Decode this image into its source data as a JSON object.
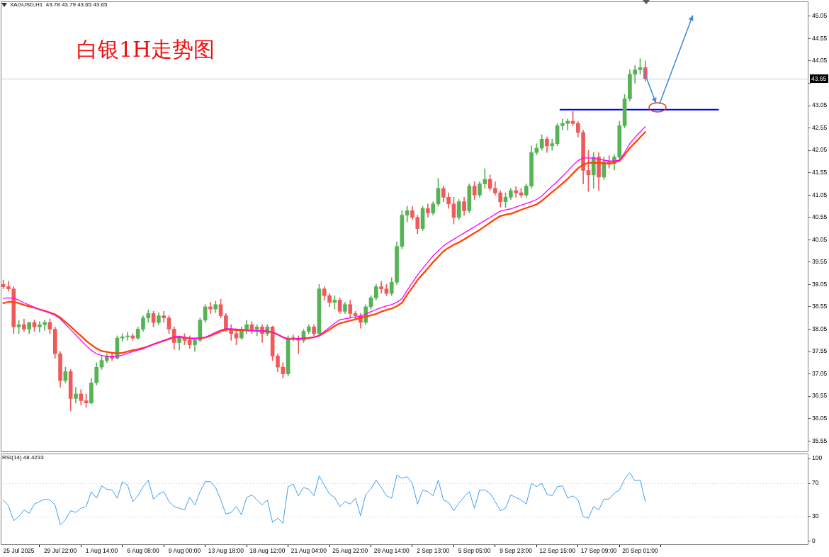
{
  "chart_data": [
    {
      "type": "candlestick",
      "title": "白银1H走势图",
      "annotations": [
        "XAGUSD,H1  43.78 43.79 43.65 43.65"
      ],
      "categories": [
        null,
        null,
        null,
        null,
        null,
        null,
        null,
        null,
        null,
        null,
        null,
        null,
        null,
        null,
        null,
        null,
        null,
        null,
        null,
        null,
        null,
        null,
        null,
        null,
        null,
        null,
        null,
        null,
        null,
        null,
        null,
        null,
        null,
        null,
        null,
        null,
        null,
        null,
        null,
        null,
        null,
        null,
        null,
        null,
        null,
        null,
        null,
        null,
        null,
        null,
        null,
        null,
        null,
        null,
        null,
        null,
        null,
        null,
        null,
        null,
        null,
        null,
        null,
        null,
        null,
        null,
        null,
        null,
        null,
        null,
        null,
        null,
        null,
        null,
        null,
        null,
        null,
        null,
        null,
        null,
        null,
        null,
        null,
        null,
        null,
        null,
        null,
        null,
        null,
        null,
        null,
        null,
        null,
        null,
        null,
        null,
        null,
        null,
        null,
        null,
        null,
        null,
        null,
        null,
        null,
        null,
        null,
        null,
        null,
        null,
        null,
        null,
        null,
        null,
        null,
        null,
        null,
        null,
        null,
        null,
        null,
        null,
        null,
        null,
        null,
        null,
        null,
        null,
        null,
        null,
        null,
        null,
        null,
        null,
        null,
        null,
        null,
        null,
        null,
        null,
        null,
        null,
        null,
        null,
        null,
        null,
        null,
        null,
        null,
        null,
        null,
        null,
        null,
        null,
        null,
        null
      ],
      "series": [
        {
          "type": "candlestick",
          "ohlc": [
            [
              39.05,
              39.15,
              38.95,
              39.0
            ],
            [
              39.0,
              39.12,
              38.9,
              38.95
            ],
            [
              38.95,
              39.0,
              37.95,
              38.1
            ],
            [
              38.1,
              38.25,
              37.95,
              38.15
            ],
            [
              38.15,
              38.28,
              38.0,
              38.05
            ],
            [
              38.05,
              38.2,
              37.95,
              38.2
            ],
            [
              38.2,
              38.26,
              38.0,
              38.1
            ],
            [
              38.1,
              38.22,
              37.98,
              38.15
            ],
            [
              38.15,
              38.25,
              38.02,
              38.2
            ],
            [
              38.2,
              38.28,
              37.95,
              38.05
            ],
            [
              38.05,
              38.1,
              37.4,
              37.5
            ],
            [
              37.5,
              37.55,
              36.75,
              36.9
            ],
            [
              36.9,
              37.2,
              36.85,
              37.1
            ],
            [
              37.1,
              37.15,
              36.22,
              36.5
            ],
            [
              36.5,
              36.75,
              36.4,
              36.6
            ],
            [
              36.6,
              36.7,
              36.35,
              36.45
            ],
            [
              36.45,
              36.6,
              36.3,
              36.4
            ],
            [
              36.4,
              36.95,
              36.38,
              36.85
            ],
            [
              36.85,
              37.3,
              36.8,
              37.2
            ],
            [
              37.2,
              37.45,
              37.15,
              37.35
            ],
            [
              37.35,
              37.5,
              37.3,
              37.45
            ],
            [
              37.45,
              37.52,
              37.35,
              37.4
            ],
            [
              37.4,
              37.9,
              37.38,
              37.85
            ],
            [
              37.85,
              37.95,
              37.78,
              37.88
            ],
            [
              37.88,
              37.98,
              37.8,
              37.9
            ],
            [
              37.9,
              37.95,
              37.8,
              37.85
            ],
            [
              37.85,
              38.1,
              37.82,
              38.05
            ],
            [
              38.05,
              38.35,
              38.0,
              38.3
            ],
            [
              38.3,
              38.48,
              38.2,
              38.4
            ],
            [
              38.4,
              38.45,
              38.1,
              38.2
            ],
            [
              38.2,
              38.42,
              38.15,
              38.35
            ],
            [
              38.35,
              38.45,
              38.2,
              38.3
            ],
            [
              38.3,
              38.35,
              37.95,
              38.05
            ],
            [
              38.05,
              38.1,
              37.6,
              37.75
            ],
            [
              37.75,
              37.9,
              37.58,
              37.85
            ],
            [
              37.85,
              37.95,
              37.7,
              37.8
            ],
            [
              37.8,
              37.9,
              37.62,
              37.7
            ],
            [
              37.7,
              37.85,
              37.55,
              37.8
            ],
            [
              37.8,
              38.3,
              37.78,
              38.25
            ],
            [
              38.25,
              38.6,
              38.2,
              38.55
            ],
            [
              38.55,
              38.65,
              38.4,
              38.5
            ],
            [
              38.5,
              38.68,
              38.42,
              38.6
            ],
            [
              38.6,
              38.72,
              38.3,
              38.35
            ],
            [
              38.35,
              38.4,
              38.0,
              38.05
            ],
            [
              38.05,
              38.15,
              37.8,
              37.95
            ],
            [
              37.95,
              38.05,
              37.7,
              37.85
            ],
            [
              37.85,
              38.1,
              37.82,
              38.05
            ],
            [
              38.05,
              38.25,
              37.95,
              38.15
            ],
            [
              38.15,
              38.22,
              37.95,
              38.05
            ],
            [
              38.05,
              38.15,
              37.9,
              38.1
            ],
            [
              38.1,
              38.15,
              37.75,
              37.95
            ],
            [
              37.95,
              38.15,
              37.9,
              38.1
            ],
            [
              38.1,
              38.12,
              37.35,
              37.45
            ],
            [
              37.45,
              37.5,
              37.1,
              37.2
            ],
            [
              37.2,
              37.3,
              36.96,
              37.05
            ],
            [
              37.05,
              37.9,
              37.0,
              37.85
            ],
            [
              37.85,
              37.92,
              37.78,
              37.85
            ],
            [
              37.85,
              37.9,
              37.5,
              37.8
            ],
            [
              37.8,
              38.05,
              37.75,
              38.0
            ],
            [
              38.0,
              38.15,
              37.95,
              38.1
            ],
            [
              38.1,
              38.15,
              37.9,
              37.95
            ],
            [
              37.95,
              39.05,
              37.9,
              38.95
            ],
            [
              38.95,
              39.0,
              38.7,
              38.8
            ],
            [
              38.8,
              38.85,
              38.55,
              38.65
            ],
            [
              38.65,
              38.8,
              38.5,
              38.7
            ],
            [
              38.7,
              38.75,
              38.4,
              38.45
            ],
            [
              38.45,
              38.65,
              38.4,
              38.6
            ],
            [
              38.6,
              38.7,
              38.3,
              38.4
            ],
            [
              38.4,
              38.45,
              38.25,
              38.35
            ],
            [
              38.35,
              38.4,
              38.07,
              38.2
            ],
            [
              38.2,
              38.6,
              38.15,
              38.55
            ],
            [
              38.55,
              38.8,
              38.5,
              38.75
            ],
            [
              38.75,
              39.05,
              38.7,
              39.0
            ],
            [
              39.0,
              39.12,
              38.85,
              38.95
            ],
            [
              38.95,
              39.05,
              38.8,
              38.85
            ],
            [
              38.85,
              39.2,
              38.8,
              39.1
            ],
            [
              39.1,
              40.0,
              39.05,
              39.9
            ],
            [
              39.9,
              40.7,
              39.85,
              40.6
            ],
            [
              40.6,
              40.8,
              40.45,
              40.7
            ],
            [
              40.7,
              40.8,
              40.5,
              40.55
            ],
            [
              40.55,
              40.6,
              40.18,
              40.3
            ],
            [
              40.3,
              40.8,
              40.25,
              40.75
            ],
            [
              40.75,
              40.85,
              40.55,
              40.65
            ],
            [
              40.65,
              40.9,
              40.6,
              40.85
            ],
            [
              40.85,
              41.42,
              40.8,
              41.2
            ],
            [
              41.2,
              41.25,
              40.9,
              41.0
            ],
            [
              41.0,
              41.1,
              40.75,
              40.85
            ],
            [
              40.85,
              41.0,
              40.4,
              40.55
            ],
            [
              40.55,
              40.95,
              40.5,
              40.9
            ],
            [
              40.9,
              41.0,
              40.6,
              40.7
            ],
            [
              40.7,
              41.3,
              40.65,
              41.25
            ],
            [
              41.25,
              41.35,
              40.95,
              41.05
            ],
            [
              41.05,
              41.35,
              41.0,
              41.3
            ],
            [
              41.3,
              41.64,
              41.2,
              41.4
            ],
            [
              41.4,
              41.5,
              41.15,
              41.2
            ],
            [
              41.2,
              41.35,
              41.05,
              41.1
            ],
            [
              41.1,
              41.15,
              40.78,
              40.9
            ],
            [
              40.9,
              41.1,
              40.77,
              41.0
            ],
            [
              41.0,
              41.2,
              40.95,
              41.15
            ],
            [
              41.15,
              41.24,
              41.0,
              41.1
            ],
            [
              41.1,
              41.2,
              41.0,
              41.05
            ],
            [
              41.05,
              41.3,
              41.0,
              41.25
            ],
            [
              41.25,
              42.15,
              41.2,
              42.0
            ],
            [
              42.0,
              42.2,
              41.95,
              42.1
            ],
            [
              42.1,
              42.4,
              42.05,
              42.3
            ],
            [
              42.3,
              42.35,
              42.0,
              42.15
            ],
            [
              42.15,
              42.3,
              42.05,
              42.2
            ],
            [
              42.2,
              42.65,
              42.15,
              42.6
            ],
            [
              42.6,
              42.75,
              42.5,
              42.65
            ],
            [
              42.65,
              42.75,
              42.5,
              42.7
            ],
            [
              42.7,
              42.92,
              42.6,
              42.65
            ],
            [
              42.65,
              42.7,
              42.35,
              42.45
            ],
            [
              42.45,
              42.5,
              41.3,
              41.6
            ],
            [
              41.6,
              42.05,
              41.13,
              41.5
            ],
            [
              41.5,
              42.0,
              41.2,
              41.9
            ],
            [
              41.9,
              42.0,
              41.15,
              41.45
            ],
            [
              41.45,
              41.9,
              41.4,
              41.8
            ],
            [
              41.8,
              41.93,
              41.65,
              41.75
            ],
            [
              41.75,
              41.95,
              41.61,
              41.9
            ],
            [
              41.9,
              42.7,
              41.85,
              42.6
            ],
            [
              42.6,
              43.3,
              42.55,
              43.2
            ],
            [
              43.2,
              43.85,
              43.15,
              43.75
            ],
            [
              43.75,
              43.95,
              43.55,
              43.85
            ],
            [
              43.85,
              44.1,
              43.75,
              43.9
            ],
            [
              43.9,
              44.05,
              43.6,
              43.65
            ],
            null,
            null,
            null,
            null,
            null,
            null,
            null,
            null,
            null,
            null,
            null,
            null,
            null,
            null,
            null,
            null,
            null,
            null,
            null,
            null,
            null,
            null,
            null,
            null,
            null,
            null,
            null,
            null,
            null,
            null,
            null
          ],
          "colors": [
            "#f05a5a",
            "#f05a5a",
            "#f05a5a",
            "#56b356",
            "#f05a5a",
            "#56b356",
            "#f05a5a",
            "#56b356",
            "#56b356",
            "#f05a5a",
            "#f05a5a",
            "#f05a5a",
            "#56b356",
            "#f05a5a",
            "#56b356",
            "#f05a5a",
            "#f05a5a",
            "#56b356",
            "#56b356",
            "#56b356",
            "#56b356",
            "#f05a5a",
            "#56b356",
            "#56b356",
            "#56b356",
            "#f05a5a",
            "#56b356",
            "#56b356",
            "#56b356",
            "#f05a5a",
            "#56b356",
            "#f05a5a",
            "#f05a5a",
            "#f05a5a",
            "#56b356",
            "#f05a5a",
            "#f05a5a",
            "#56b356",
            "#56b356",
            "#56b356",
            "#f05a5a",
            "#56b356",
            "#f05a5a",
            "#f05a5a",
            "#f05a5a",
            "#f05a5a",
            "#56b356",
            "#56b356",
            "#f05a5a",
            "#56b356",
            "#f05a5a",
            "#56b356",
            "#f05a5a",
            "#f05a5a",
            "#f05a5a",
            "#56b356",
            "#56b356",
            "#f05a5a",
            "#56b356",
            "#56b356",
            "#f05a5a",
            "#56b356",
            "#f05a5a",
            "#f05a5a",
            "#56b356",
            "#f05a5a",
            "#56b356",
            "#f05a5a",
            "#f05a5a",
            "#f05a5a",
            "#56b356",
            "#56b356",
            "#56b356",
            "#f05a5a",
            "#f05a5a",
            "#56b356",
            "#56b356",
            "#56b356",
            "#56b356",
            "#f05a5a",
            "#f05a5a",
            "#56b356",
            "#f05a5a",
            "#56b356",
            "#56b356",
            "#f05a5a",
            "#f05a5a",
            "#f05a5a",
            "#56b356",
            "#f05a5a",
            "#56b356",
            "#f05a5a",
            "#56b356",
            "#56b356",
            "#f05a5a",
            "#f05a5a",
            "#f05a5a",
            "#56b356",
            "#56b356",
            "#f05a5a",
            "#f05a5a",
            "#56b356",
            "#56b356",
            "#56b356",
            "#56b356",
            "#f05a5a",
            "#56b356",
            "#56b356",
            "#56b356",
            "#56b356",
            "#f05a5a",
            "#f05a5a",
            "#f05a5a",
            "#f05a5a",
            "#56b356",
            "#f05a5a",
            "#56b356",
            "#f05a5a",
            "#56b356",
            "#56b356",
            "#56b356",
            "#56b356",
            "#56b356",
            "#56b356",
            "#f05a5a",
            null,
            null,
            null,
            null,
            null,
            null,
            null,
            null,
            null,
            null,
            null,
            null,
            null,
            null,
            null,
            null,
            null,
            null,
            null,
            null,
            null,
            null,
            null,
            null,
            null,
            null,
            null,
            null,
            null,
            null,
            null
          ]
        },
        {
          "type": "line",
          "color": "#ff00ff",
          "values": [
            38.74,
            38.75,
            38.74,
            38.7,
            38.64,
            38.59,
            38.54,
            38.49,
            38.45,
            38.41,
            38.36,
            38.28,
            38.16,
            38.04,
            37.92,
            37.8,
            37.68,
            37.58,
            37.5,
            37.46,
            37.44,
            37.44,
            37.44,
            37.47,
            37.51,
            37.55,
            37.58,
            37.61,
            37.66,
            37.71,
            37.76,
            37.8,
            37.84,
            37.88,
            37.89,
            37.87,
            37.85,
            37.84,
            37.85,
            37.87,
            37.92,
            37.98,
            38.03,
            38.06,
            38.06,
            38.05,
            38.04,
            38.03,
            38.02,
            38.02,
            38.01,
            38.01,
            37.98,
            37.93,
            37.86,
            37.83,
            37.83,
            37.84,
            37.85,
            37.86,
            37.87,
            37.91,
            38.0,
            38.09,
            38.18,
            38.26,
            38.28,
            38.3,
            38.32,
            38.34,
            38.39,
            38.44,
            38.49,
            38.53,
            38.57,
            38.6,
            38.65,
            38.73,
            38.92,
            39.09,
            39.26,
            39.41,
            39.55,
            39.69,
            39.8,
            39.91,
            39.99,
            40.06,
            40.13,
            40.2,
            40.27,
            40.34,
            40.41,
            40.48,
            40.55,
            40.62,
            40.69,
            40.72,
            40.74,
            40.78,
            40.82,
            40.86,
            40.9,
            40.95,
            41.03,
            41.14,
            41.25,
            41.35,
            41.47,
            41.59,
            41.71,
            41.82,
            41.88,
            41.88,
            41.87,
            41.85,
            41.83,
            41.81,
            41.81,
            41.83,
            42.0,
            42.2,
            42.34,
            42.46,
            42.58,
            null,
            null,
            null,
            null,
            null,
            null,
            null,
            null,
            null,
            null,
            null,
            null,
            null,
            null,
            null,
            null,
            null,
            null,
            null,
            null,
            null,
            null,
            null,
            null,
            null,
            null,
            null,
            null,
            null,
            null,
            null
          ]
        },
        {
          "type": "line",
          "color": "#ff4500",
          "values": [
            38.63,
            38.66,
            38.66,
            38.63,
            38.59,
            38.56,
            38.53,
            38.49,
            38.46,
            38.42,
            38.38,
            38.31,
            38.21,
            38.11,
            38.0,
            37.9,
            37.79,
            37.7,
            37.62,
            37.56,
            37.54,
            37.52,
            37.51,
            37.52,
            37.55,
            37.58,
            37.6,
            37.63,
            37.67,
            37.71,
            37.75,
            37.79,
            37.83,
            37.87,
            37.87,
            37.86,
            37.84,
            37.84,
            37.85,
            37.86,
            37.9,
            37.95,
            38.0,
            38.04,
            38.04,
            38.03,
            38.03,
            38.02,
            38.02,
            38.01,
            38.01,
            38.0,
            37.98,
            37.93,
            37.87,
            37.83,
            37.83,
            37.83,
            37.84,
            37.85,
            37.87,
            37.9,
            37.97,
            38.04,
            38.12,
            38.18,
            38.21,
            38.24,
            38.27,
            38.3,
            38.33,
            38.36,
            38.39,
            38.44,
            38.48,
            38.51,
            38.56,
            38.64,
            38.82,
            38.98,
            39.15,
            39.28,
            39.41,
            39.55,
            39.67,
            39.79,
            39.87,
            39.94,
            39.99,
            40.06,
            40.13,
            40.2,
            40.27,
            40.35,
            40.43,
            40.51,
            40.58,
            40.61,
            40.63,
            40.67,
            40.72,
            40.76,
            40.8,
            40.84,
            40.92,
            41.02,
            41.12,
            41.21,
            41.31,
            41.41,
            41.53,
            41.65,
            41.73,
            41.77,
            41.77,
            41.77,
            41.76,
            41.75,
            41.78,
            41.81,
            41.95,
            42.1,
            42.22,
            42.34,
            42.46,
            null,
            null,
            null,
            null,
            null,
            null,
            null,
            null,
            null,
            null,
            null,
            null,
            null,
            null,
            null,
            null,
            null,
            null,
            null,
            null,
            null,
            null,
            null,
            null,
            null,
            null,
            null,
            null,
            null,
            null,
            null
          ]
        }
      ],
      "ylim": [
        35.3,
        45.38
      ],
      "yticks": [
        35.55,
        36.05,
        36.55,
        37.05,
        37.55,
        38.05,
        38.55,
        39.05,
        39.55,
        40.05,
        40.55,
        41.05,
        41.55,
        42.05,
        42.55,
        43.05,
        {
          "value": 43.55,
          "label": null
        },
        44.05,
        44.55,
        45.05
      ],
      "ref_lines": [
        {
          "axis": "y",
          "value": 42.96,
          "color": "#0000ff"
        },
        {
          "axis": "y",
          "value": 43.65,
          "label": "43.65",
          "color": "#c3ccd6"
        }
      ],
      "tick_labels": "y"
    },
    {
      "type": "line",
      "title": "RSI(14) 48.4233",
      "categories": [
        null,
        null,
        null,
        "25 Jul 2025",
        null,
        null,
        null,
        null,
        null,
        null,
        null,
        "29 Jul 22:00",
        null,
        null,
        null,
        null,
        null,
        null,
        null,
        "1 Aug 14:00",
        null,
        null,
        null,
        null,
        null,
        null,
        null,
        "6 Aug 08:00",
        null,
        null,
        null,
        null,
        null,
        null,
        null,
        "9 Aug 00:00",
        null,
        null,
        null,
        null,
        null,
        null,
        null,
        "13 Aug 18:00",
        null,
        null,
        null,
        null,
        null,
        null,
        null,
        "18 Aug 12:00",
        null,
        null,
        null,
        null,
        null,
        null,
        null,
        "21 Aug 04:00",
        null,
        null,
        null,
        null,
        null,
        null,
        null,
        "25 Aug 22:00",
        null,
        null,
        null,
        null,
        null,
        null,
        null,
        "28 Aug 14:00",
        null,
        null,
        null,
        null,
        null,
        null,
        null,
        "2 Sep 13:00",
        null,
        null,
        null,
        null,
        null,
        null,
        null,
        "5 Sep 05:00",
        null,
        null,
        null,
        null,
        null,
        null,
        null,
        "9 Sep 23:00",
        null,
        null,
        null,
        null,
        null,
        null,
        null,
        "12 Sep 15:00",
        null,
        null,
        null,
        null,
        null,
        null,
        null,
        "17 Sep 09:00",
        null,
        null,
        null,
        null,
        null,
        null,
        null,
        "20 Sep 01:00",
        null,
        null,
        null,
        null,
        null,
        null,
        null,
        null,
        null,
        null,
        null,
        null,
        null,
        null,
        null,
        null,
        null,
        null,
        null,
        null,
        null,
        null,
        null,
        null,
        null,
        null,
        null,
        null,
        null,
        null,
        null,
        null
      ],
      "series": [
        {
          "color": "#3d9df3",
          "values": [
            50,
            43,
            25,
            30,
            38,
            34,
            45,
            48,
            51,
            50,
            44,
            20,
            26,
            37,
            35,
            40,
            42,
            60,
            52,
            67,
            63,
            62,
            52,
            72,
            68,
            48,
            55,
            66,
            74,
            51,
            57,
            60,
            48,
            42,
            40,
            38,
            53,
            44,
            60,
            72,
            72,
            65,
            50,
            33,
            35,
            42,
            32,
            53,
            56,
            50,
            44,
            50,
            23,
            28,
            22,
            66,
            69,
            55,
            65,
            63,
            55,
            79,
            68,
            57,
            53,
            42,
            48,
            45,
            52,
            31,
            57,
            63,
            74,
            65,
            55,
            52,
            80,
            76,
            78,
            70,
            45,
            62,
            60,
            55,
            74,
            50,
            47,
            37,
            46,
            54,
            60,
            40,
            62,
            62,
            58,
            48,
            37,
            40,
            56,
            53,
            50,
            45,
            70,
            66,
            70,
            57,
            55,
            66,
            67,
            52,
            55,
            50,
            30,
            28,
            42,
            38,
            51,
            51,
            58,
            62,
            75,
            83,
            73,
            74,
            48,
            null,
            null,
            null,
            null,
            null,
            null,
            null,
            null,
            null,
            null,
            null,
            null,
            null,
            null,
            null,
            null,
            null,
            null,
            null,
            null,
            null,
            null,
            null,
            null,
            null,
            null,
            null,
            null,
            null,
            null,
            null
          ]
        }
      ],
      "ylim": [
        -4.3,
        106
      ],
      "yticks": [
        0,
        30,
        70,
        100
      ],
      "ref_lines": [
        {
          "axis": "y",
          "value": 30,
          "line_style": "dotted",
          "color": "#c8c8c8"
        },
        {
          "axis": "y",
          "value": 70,
          "line_style": "dotted",
          "color": "#c8c8c8"
        }
      ]
    }
  ]
}
